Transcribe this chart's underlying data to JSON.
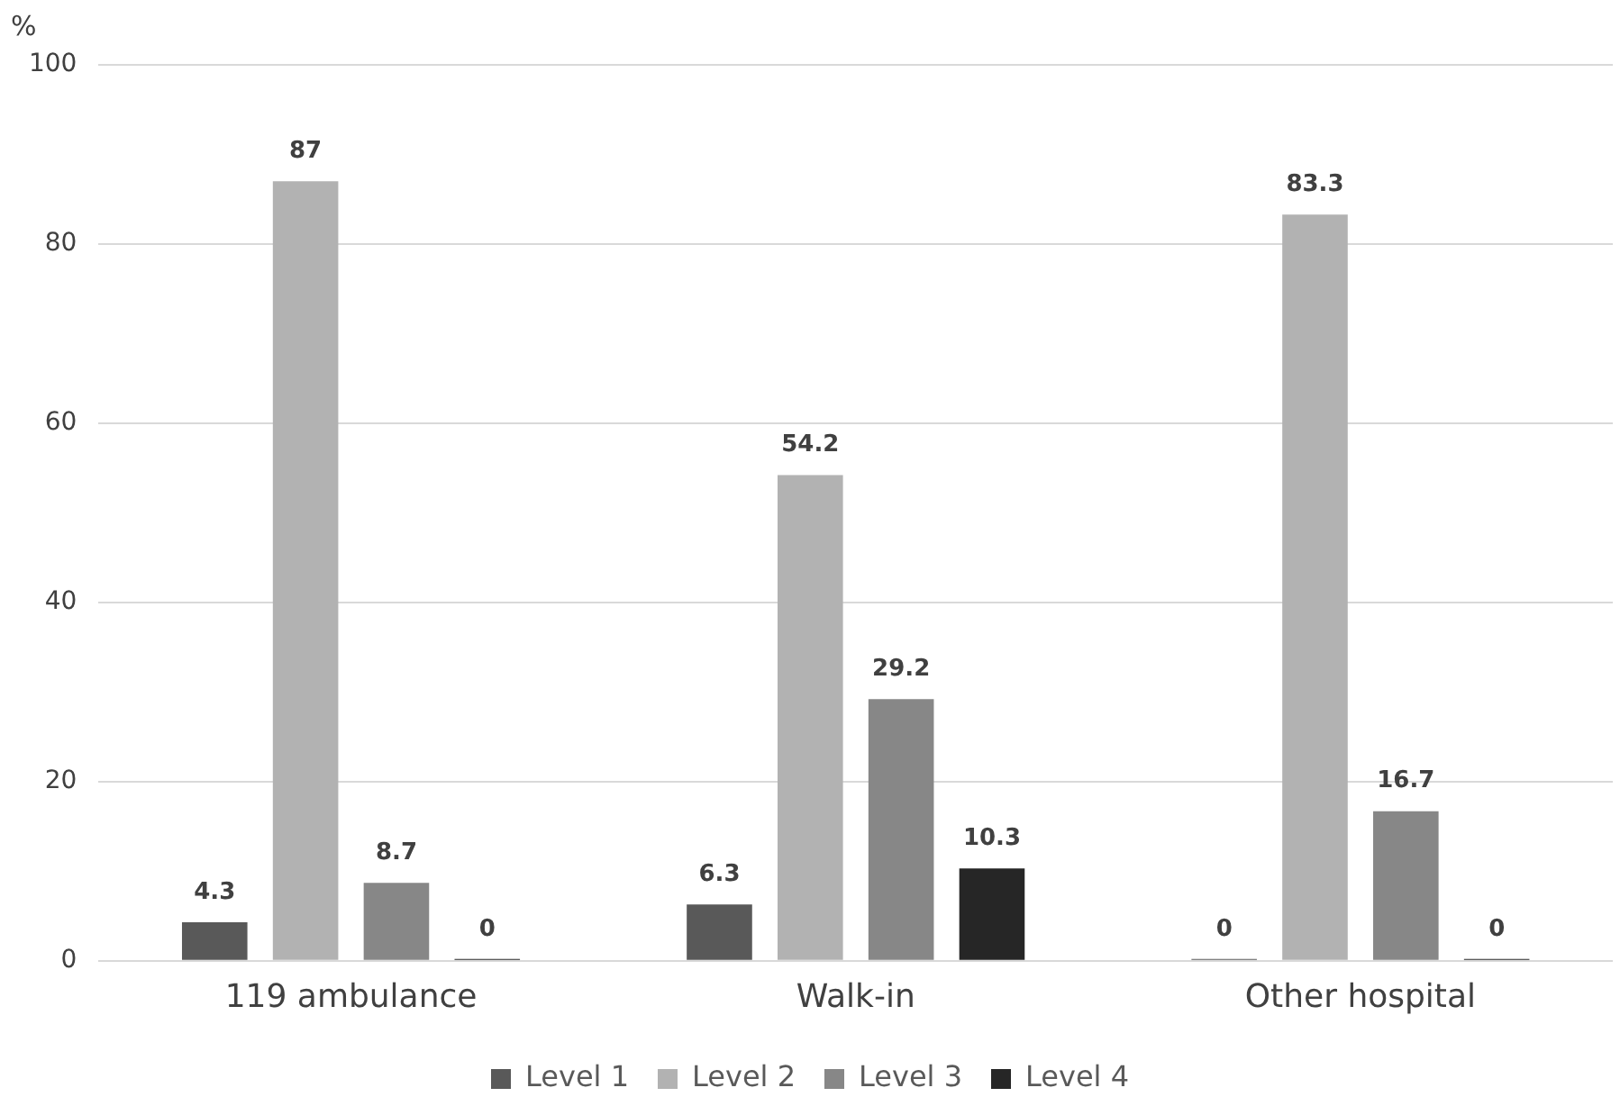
{
  "chart_data": {
    "type": "bar",
    "ylabel": "%",
    "categories": [
      "119 ambulance",
      "Walk-in",
      "Other hospital"
    ],
    "series": [
      {
        "name": "Level 1",
        "color": "#595959",
        "values": [
          4.3,
          6.3,
          0
        ]
      },
      {
        "name": "Level 2",
        "color": "#b2b2b2",
        "values": [
          87,
          54.2,
          83.3
        ]
      },
      {
        "name": "Level 3",
        "color": "#878787",
        "values": [
          8.7,
          29.2,
          16.7
        ]
      },
      {
        "name": "Level 4",
        "color": "#262626",
        "values": [
          0,
          10.3,
          0
        ]
      }
    ],
    "ylim": [
      0,
      100
    ],
    "yticks": [
      0,
      20,
      40,
      60,
      80,
      100
    ],
    "grid": "y",
    "legend": "bottom",
    "data_labels": true
  }
}
